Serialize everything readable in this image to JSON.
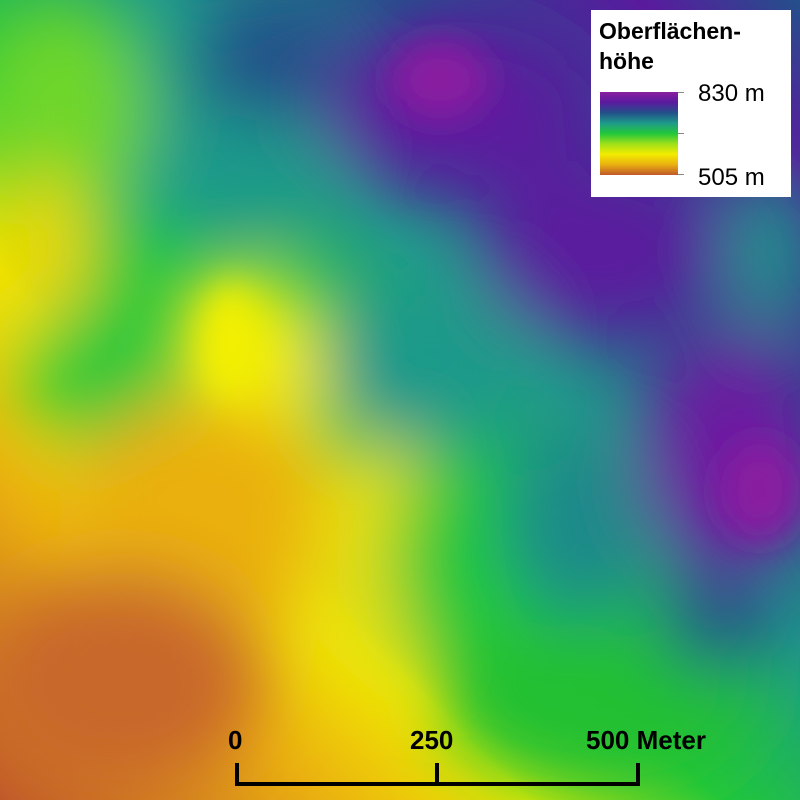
{
  "legend": {
    "title": "Oberflächen-höhe",
    "title_line1": "Oberflächen-",
    "title_line2": "höhe",
    "max_label": "830 m",
    "min_label": "505 m",
    "max_value": 830,
    "min_value": 505,
    "unit": "m",
    "color_ramp": [
      "#8a1ea0",
      "#5a1a9e",
      "#23508a",
      "#1e9a8a",
      "#22c83a",
      "#9ee01a",
      "#f2ec00",
      "#eab010",
      "#c0582a"
    ]
  },
  "scale_bar": {
    "labels": [
      "0",
      "250",
      "500 Meter"
    ],
    "values": [
      0,
      250,
      500
    ],
    "unit": "Meter"
  }
}
